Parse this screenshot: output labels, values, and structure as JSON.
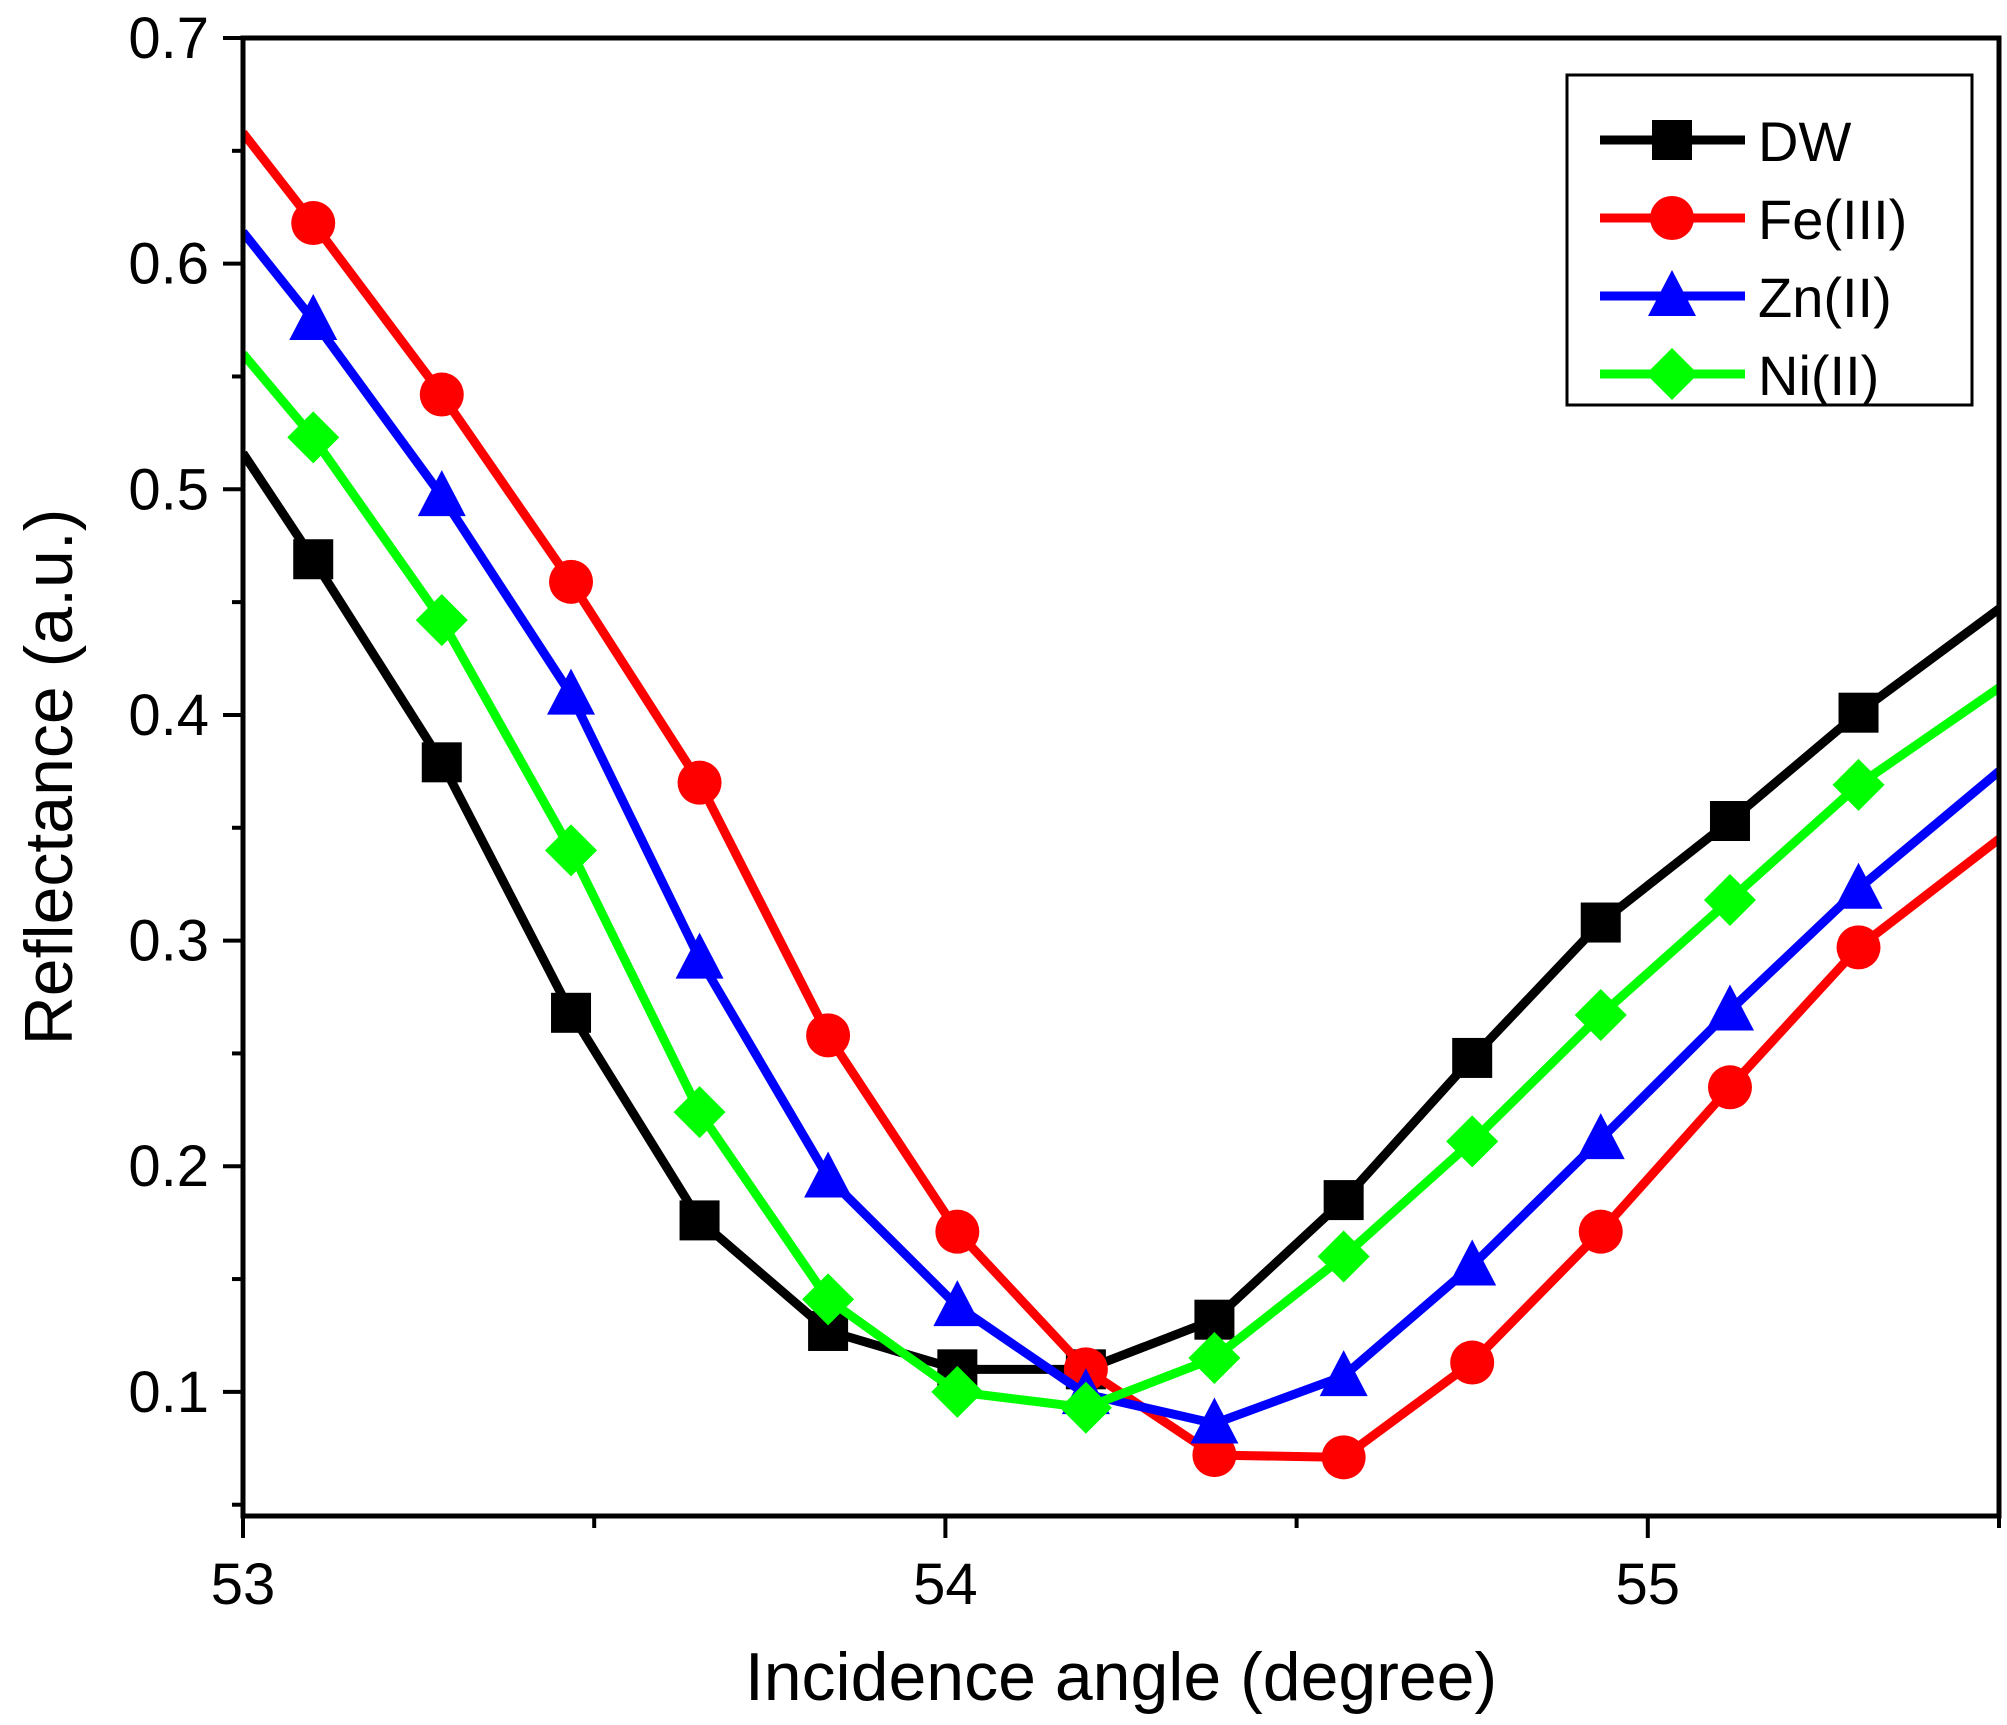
{
  "chart_data": {
    "type": "line",
    "title": "",
    "xlabel": "Incidence angle (degree)",
    "ylabel": "Reflectance (a.u.)",
    "xlim": [
      53,
      55.5
    ],
    "ylim": [
      0.045,
      0.7
    ],
    "xticks": [
      53,
      54,
      55
    ],
    "xtick_labels": [
      "53",
      "54",
      "55"
    ],
    "yticks": [
      0.1,
      0.2,
      0.3,
      0.4,
      0.5,
      0.6,
      0.7
    ],
    "ytick_labels": [
      "0.1",
      "0.2",
      "0.3",
      "0.4",
      "0.5",
      "0.6",
      "0.7"
    ],
    "legend_position": "top-right",
    "x": [
      53.1,
      53.283,
      53.467,
      53.65,
      53.833,
      54.017,
      54.2,
      54.383,
      54.567,
      54.75,
      54.933,
      55.117,
      55.3
    ],
    "series": [
      {
        "name": "DW",
        "color": "#000000",
        "marker": "square",
        "line_start": [
          53.0,
          0.516
        ],
        "line_end": [
          55.5,
          0.447
        ],
        "values": [
          0.469,
          0.379,
          0.268,
          0.176,
          0.127,
          0.11,
          0.11,
          0.132,
          0.185,
          0.248,
          0.308,
          0.353,
          0.401
        ]
      },
      {
        "name": "Fe(III)",
        "color": "#ff0000",
        "marker": "circle",
        "line_start": [
          53.0,
          0.658
        ],
        "line_end": [
          55.5,
          0.345
        ],
        "values": [
          0.618,
          0.542,
          0.459,
          0.37,
          0.258,
          0.171,
          0.11,
          0.072,
          0.071,
          0.113,
          0.171,
          0.235,
          0.297
        ]
      },
      {
        "name": "Zn(II)",
        "color": "#0000ff",
        "marker": "triangle",
        "line_start": [
          53.0,
          0.614
        ],
        "line_end": [
          55.5,
          0.375
        ],
        "values": [
          0.575,
          0.497,
          0.409,
          0.292,
          0.195,
          0.138,
          0.099,
          0.086,
          0.107,
          0.156,
          0.212,
          0.269,
          0.323
        ]
      },
      {
        "name": "Ni(II)",
        "color": "#00ff00",
        "marker": "diamond",
        "line_start": [
          53.0,
          0.56
        ],
        "line_end": [
          55.5,
          0.412
        ],
        "values": [
          0.523,
          0.442,
          0.34,
          0.224,
          0.141,
          0.1,
          0.093,
          0.115,
          0.16,
          0.211,
          0.267,
          0.318,
          0.369
        ]
      }
    ]
  }
}
